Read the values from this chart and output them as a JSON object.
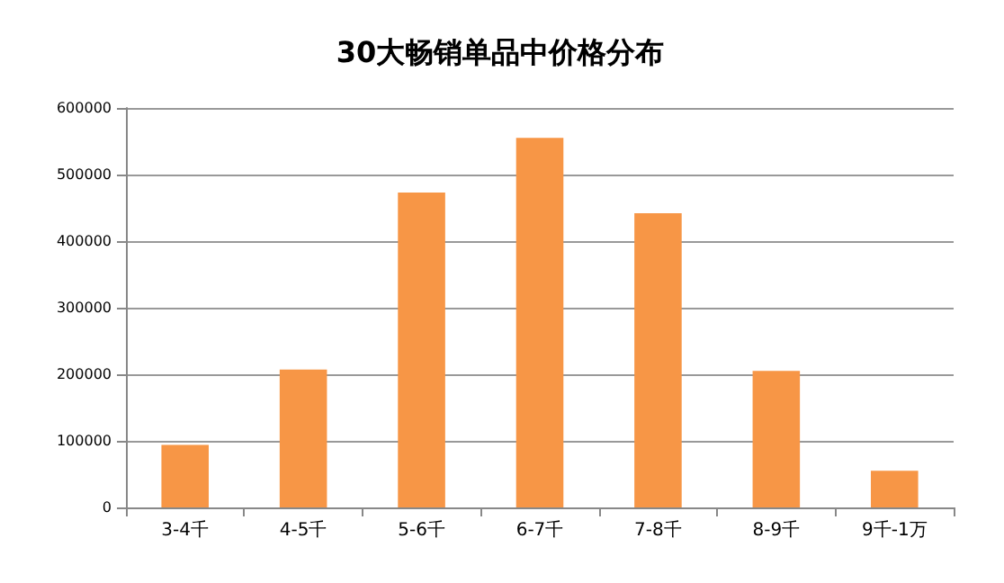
{
  "chart_data": {
    "type": "bar",
    "title": "30大畅销单品中价格分布",
    "categories": [
      "3-4千",
      "4-5千",
      "5-6千",
      "6-7千",
      "7-8千",
      "8-9千",
      "9千-1万"
    ],
    "values": [
      94000,
      207000,
      473000,
      555000,
      442000,
      205000,
      55000
    ],
    "color": "#f79646",
    "ylim": [
      0,
      600000
    ],
    "yticks": [
      0,
      100000,
      200000,
      300000,
      400000,
      500000,
      600000
    ],
    "grid": "y"
  }
}
